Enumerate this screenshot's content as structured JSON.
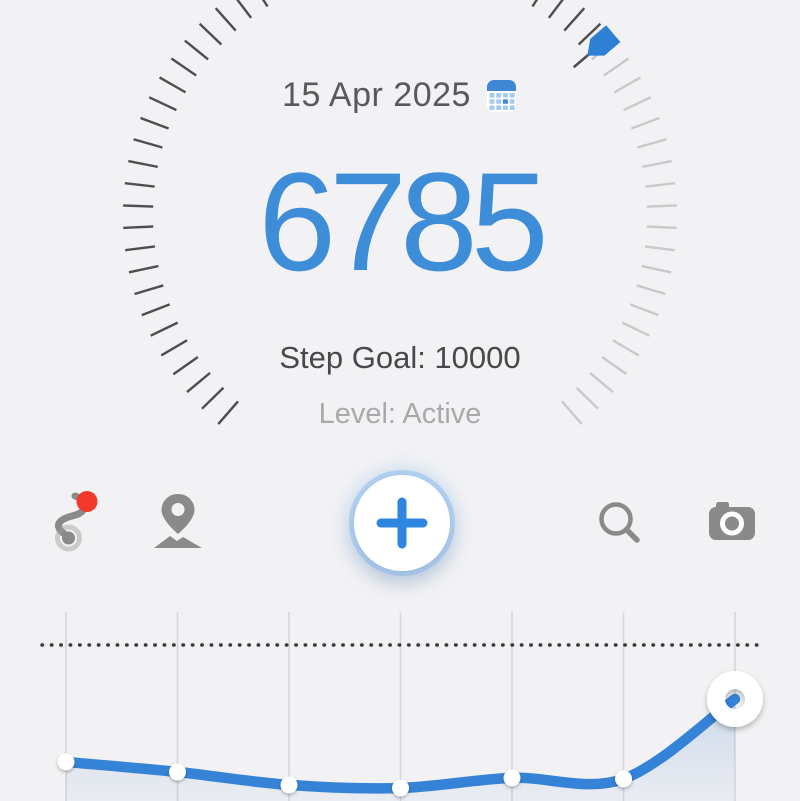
{
  "colors": {
    "background": "#f2f2f4",
    "accent": "#3d8dd9",
    "line": "#3583d6",
    "marker": "#2e80d5",
    "badge": "#f2392c",
    "icon_gray": "#8a8a8a",
    "tick_filled": "#4e4e50",
    "tick_empty": "#c9c9cb",
    "grid": "#d7d7d9",
    "goal_dots": "#3a3a3c"
  },
  "header": {
    "date": "15 Apr 2025"
  },
  "tracker": {
    "steps": "6785",
    "steps_value": 6785,
    "goal_value": 10000,
    "goal_label": "Step Goal: 10000",
    "level_label": "Level: Active"
  },
  "toolbar": {
    "items": [
      {
        "name": "route-icon",
        "badge": true
      },
      {
        "name": "location-pin-icon"
      },
      {
        "name": "add-button",
        "glyph": "+"
      },
      {
        "name": "search-icon"
      },
      {
        "name": "camera-icon"
      }
    ]
  },
  "chart_data": {
    "type": "area",
    "title": "",
    "x_gridlines": 7,
    "series": [
      {
        "name": "daily-steps",
        "values": [
          3040,
          2440,
          1670,
          1490,
          2090,
          2030,
          6785
        ]
      }
    ],
    "goal_line": 10000,
    "goal_line_style": "dotted",
    "highlighted_index": 6,
    "legend": "none"
  }
}
